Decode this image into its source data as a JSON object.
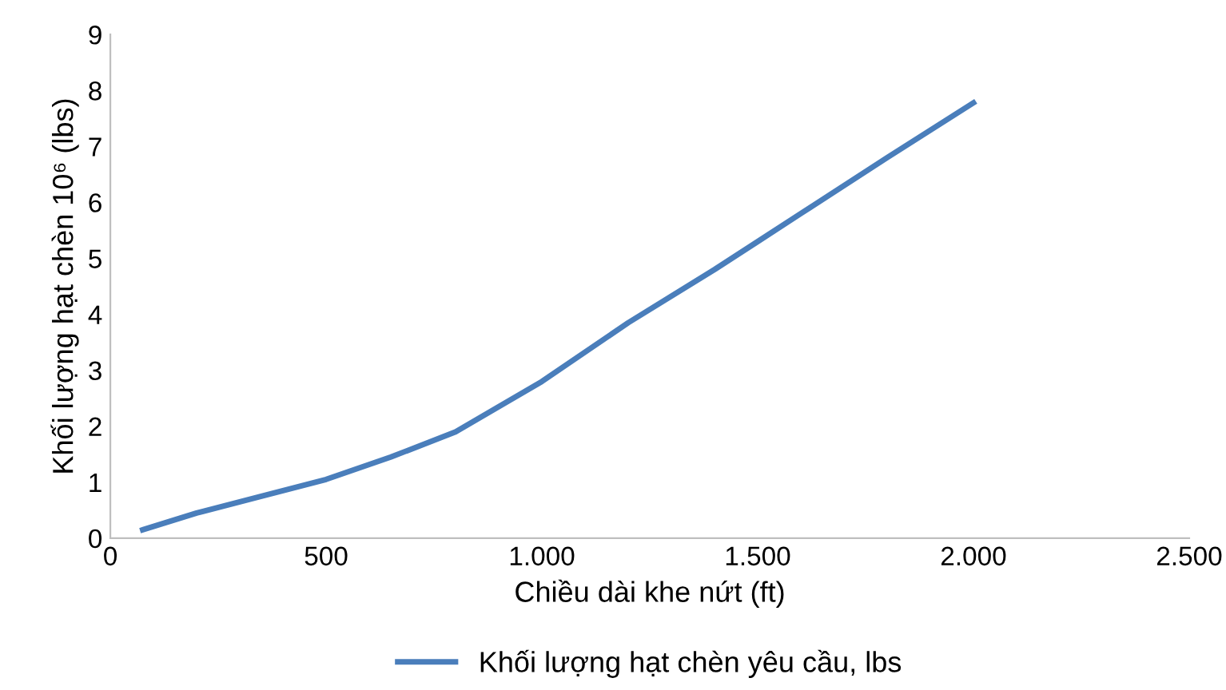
{
  "chart_data": {
    "type": "line",
    "xlabel": "Chiều dài khe nứt (ft)",
    "ylabel": "Khối lượng hạt chèn 10⁶ (lbs)",
    "series": [
      {
        "name": "Khối lượng hạt chèn yêu cầu, lbs",
        "color": "#4a7ebb",
        "x": [
          75,
          200,
          350,
          500,
          650,
          800,
          1000,
          1200,
          1400,
          1500,
          1600,
          1800,
          2000
        ],
        "values": [
          0.15,
          0.45,
          0.75,
          1.05,
          1.45,
          1.9,
          2.8,
          3.85,
          4.8,
          5.3,
          5.8,
          6.8,
          7.78
        ]
      }
    ],
    "xlim": [
      0,
      2500
    ],
    "xticks": [
      0,
      {
        "value": 500,
        "label": "500"
      },
      {
        "value": 1000,
        "label": "1.000"
      },
      {
        "value": 1500,
        "label": "1.500"
      },
      {
        "value": 2000,
        "label": "2.000"
      },
      {
        "value": 2500,
        "label": "2.500"
      }
    ],
    "ylim": [
      0,
      9
    ],
    "yticks": [
      0,
      1,
      2,
      3,
      4,
      5,
      6,
      7,
      8,
      9
    ],
    "grid": false,
    "legend": "bottom",
    "marker": "none",
    "line_style": "solid"
  }
}
